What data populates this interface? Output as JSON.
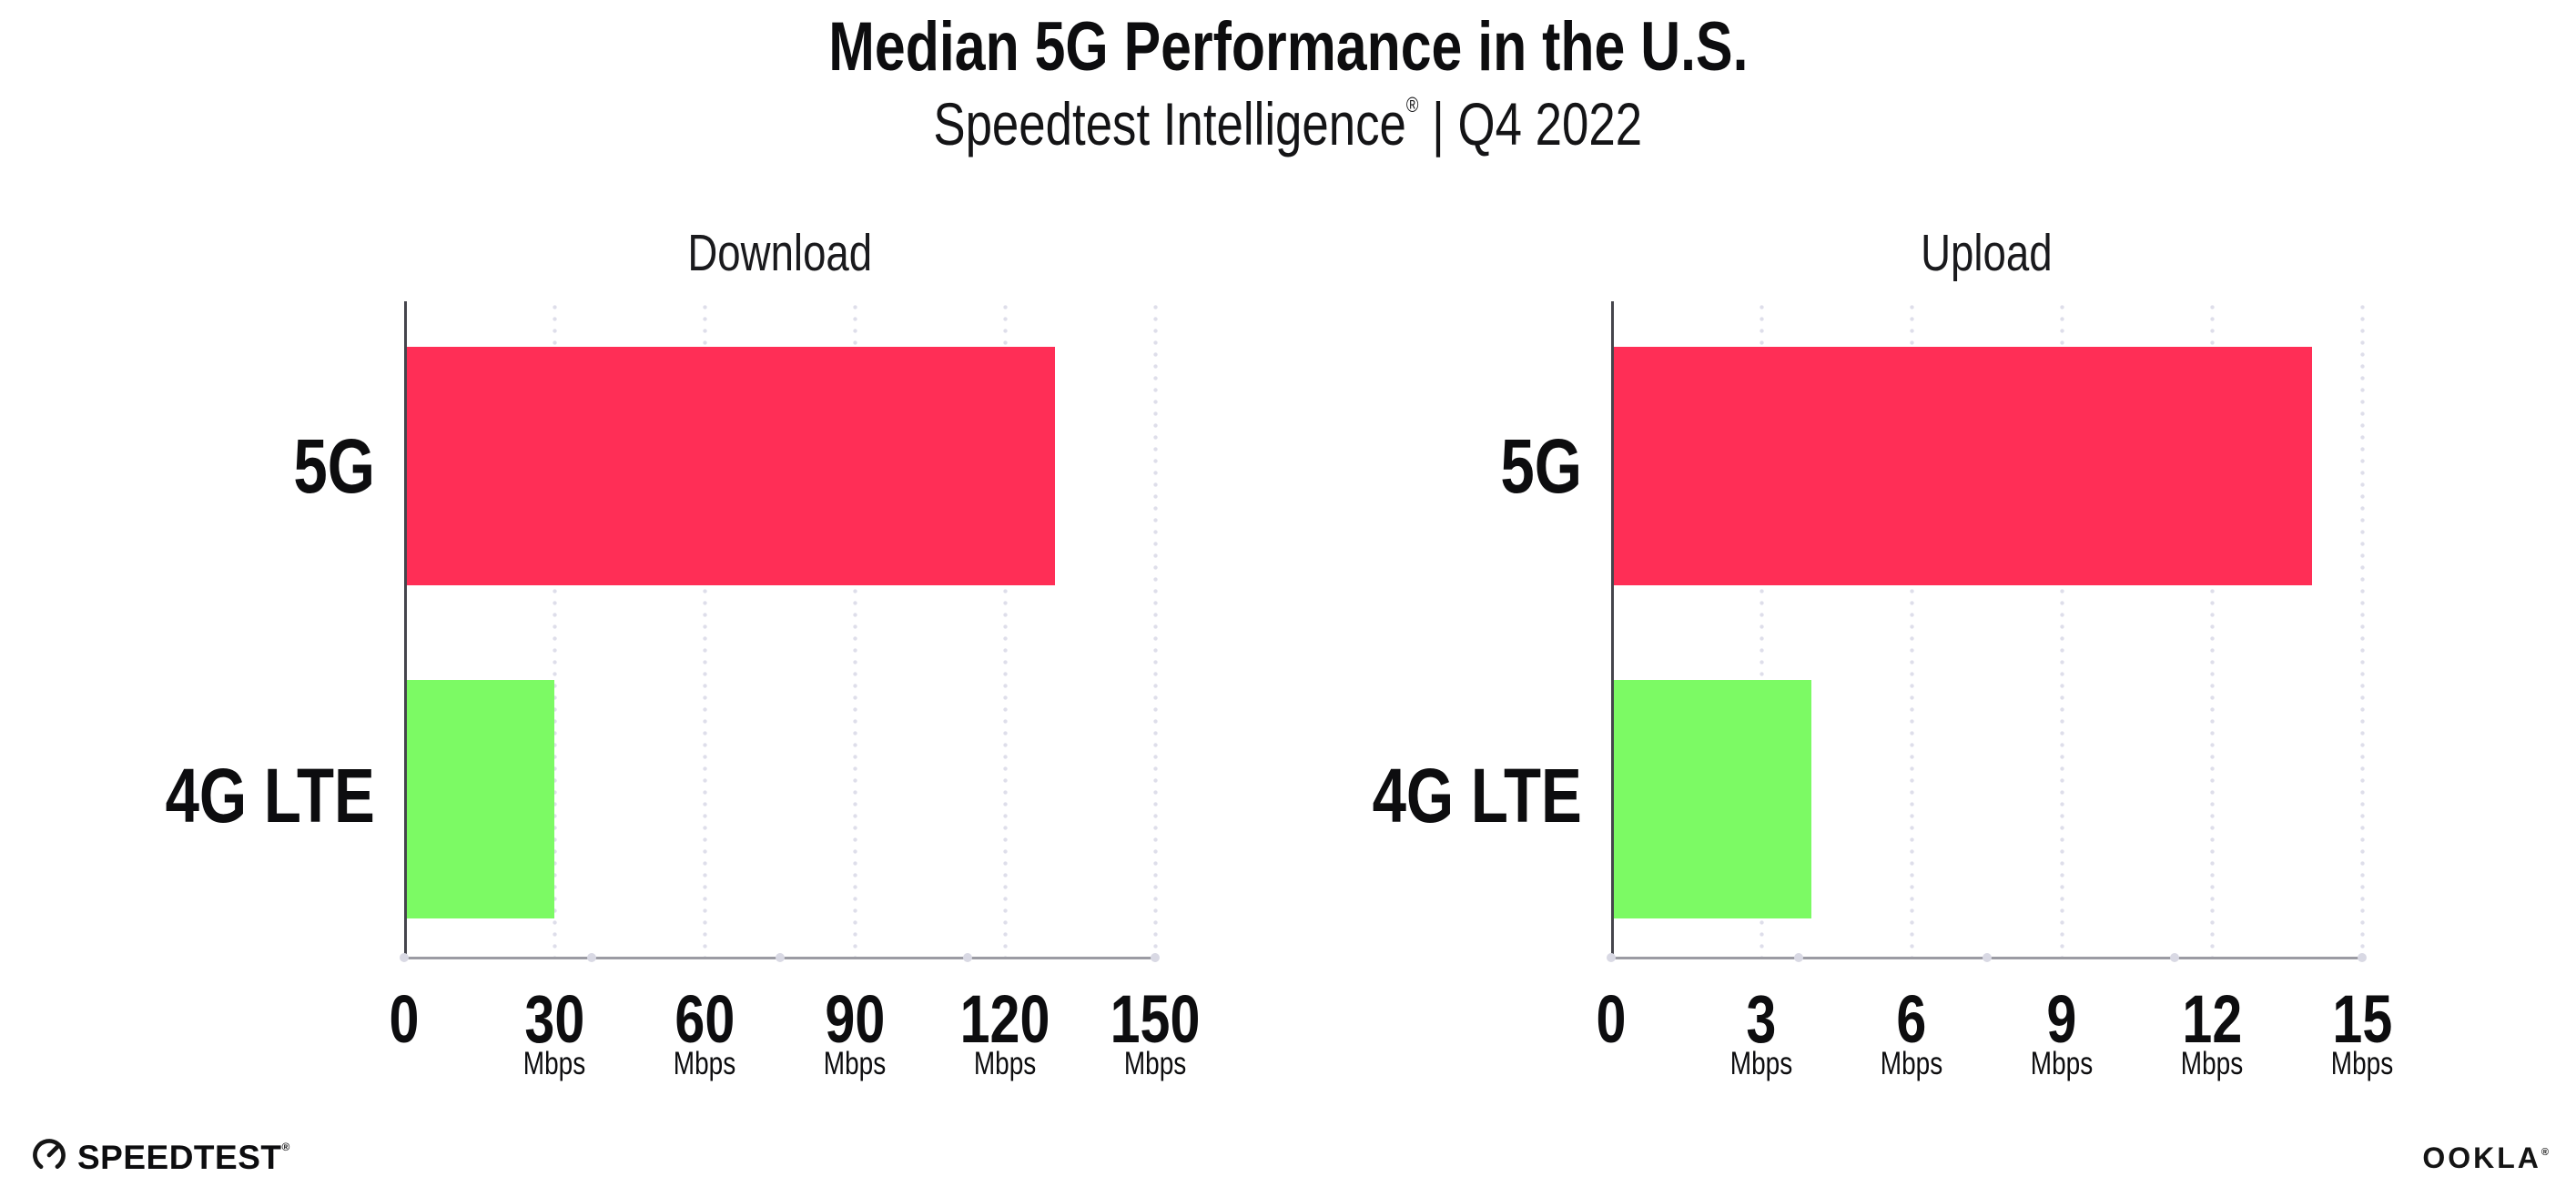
{
  "header": {
    "title": "Median 5G Performance in the U.S.",
    "subtitle_brand": "Speedtest Intelligence",
    "subtitle_reg": "®",
    "subtitle_rest": " | Q4 2022"
  },
  "colors": {
    "bar_5g_red": "#ff2e56",
    "bar_4g_green": "#7cfa64",
    "gridline_dot": "#dedeea",
    "baseline_gray": "#9b9ba3",
    "axis_dark": "#45454c"
  },
  "chart_data": [
    {
      "type": "bar",
      "orientation": "horizontal",
      "title": "Download",
      "categories": [
        "5G",
        "4G LTE"
      ],
      "values": [
        130,
        30
      ],
      "unit": "Mbps",
      "xlim": [
        0,
        150
      ],
      "xticks": [
        0,
        30,
        60,
        90,
        120,
        150
      ],
      "grid": "vertical-dotted",
      "legend": "none",
      "bar_colors": [
        "#ff2e56",
        "#7cfa64"
      ]
    },
    {
      "type": "bar",
      "orientation": "horizontal",
      "title": "Upload",
      "categories": [
        "5G",
        "4G LTE"
      ],
      "values": [
        14,
        4
      ],
      "unit": "Mbps",
      "xlim": [
        0,
        15
      ],
      "xticks": [
        0,
        3,
        6,
        9,
        12,
        15
      ],
      "grid": "vertical-dotted",
      "legend": "none",
      "bar_colors": [
        "#ff2e56",
        "#7cfa64"
      ]
    }
  ],
  "footer": {
    "speedtest_label": "SPEEDTEST",
    "speedtest_mark": "®",
    "ookla_label": "OOKLA",
    "ookla_mark": "®"
  }
}
